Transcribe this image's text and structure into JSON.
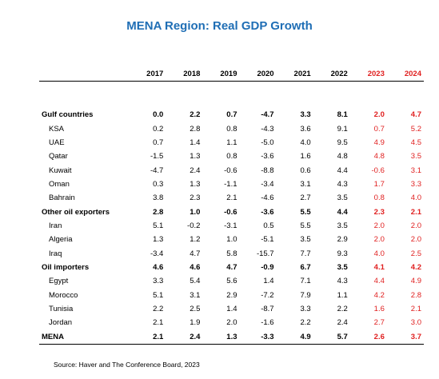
{
  "title": "MENA Region: Real GDP Growth",
  "source": "Source: Haver and The Conference Board, 2023",
  "colors": {
    "title": "#1f6eb5",
    "forecast": "#e02020",
    "text": "#000000"
  },
  "years": [
    "2017",
    "2018",
    "2019",
    "2020",
    "2021",
    "2022",
    "2023",
    "2024"
  ],
  "forecast_years": [
    "2023",
    "2024"
  ],
  "rows": [
    {
      "name": "Gulf countries",
      "type": "group",
      "values": [
        "0.0",
        "2.2",
        "0.7",
        "-4.7",
        "3.3",
        "8.1",
        "2.0",
        "4.7"
      ]
    },
    {
      "name": "KSA",
      "type": "sub",
      "values": [
        "0.2",
        "2.8",
        "0.8",
        "-4.3",
        "3.6",
        "9.1",
        "0.7",
        "5.2"
      ]
    },
    {
      "name": "UAE",
      "type": "sub",
      "values": [
        "0.7",
        "1.4",
        "1.1",
        "-5.0",
        "4.0",
        "9.5",
        "4.9",
        "4.5"
      ]
    },
    {
      "name": "Qatar",
      "type": "sub",
      "values": [
        "-1.5",
        "1.3",
        "0.8",
        "-3.6",
        "1.6",
        "4.8",
        "4.8",
        "3.5"
      ]
    },
    {
      "name": "Kuwait",
      "type": "sub",
      "values": [
        "-4.7",
        "2.4",
        "-0.6",
        "-8.8",
        "0.6",
        "4.4",
        "-0.6",
        "3.1"
      ]
    },
    {
      "name": "Oman",
      "type": "sub",
      "values": [
        "0.3",
        "1.3",
        "-1.1",
        "-3.4",
        "3.1",
        "4.3",
        "1.7",
        "3.3"
      ]
    },
    {
      "name": "Bahrain",
      "type": "sub",
      "values": [
        "3.8",
        "2.3",
        "2.1",
        "-4.6",
        "2.7",
        "3.5",
        "0.8",
        "4.0"
      ]
    },
    {
      "name": "Other oil exporters",
      "type": "group",
      "values": [
        "2.8",
        "1.0",
        "-0.6",
        "-3.6",
        "5.5",
        "4.4",
        "2.3",
        "2.1"
      ]
    },
    {
      "name": "Iran",
      "type": "sub",
      "values": [
        "5.1",
        "-0.2",
        "-3.1",
        "0.5",
        "5.5",
        "3.5",
        "2.0",
        "2.0"
      ]
    },
    {
      "name": "Algeria",
      "type": "sub",
      "values": [
        "1.3",
        "1.2",
        "1.0",
        "-5.1",
        "3.5",
        "2.9",
        "2.0",
        "2.0"
      ]
    },
    {
      "name": "Iraq",
      "type": "sub",
      "values": [
        "-3.4",
        "4.7",
        "5.8",
        "-15.7",
        "7.7",
        "9.3",
        "4.0",
        "2.5"
      ]
    },
    {
      "name": "Oil importers",
      "type": "group",
      "values": [
        "4.6",
        "4.6",
        "4.7",
        "-0.9",
        "6.7",
        "3.5",
        "4.1",
        "4.2"
      ]
    },
    {
      "name": "Egypt",
      "type": "sub",
      "values": [
        "3.3",
        "5.4",
        "5.6",
        "1.4",
        "7.1",
        "4.3",
        "4.4",
        "4.9"
      ]
    },
    {
      "name": "Morocco",
      "type": "sub",
      "values": [
        "5.1",
        "3.1",
        "2.9",
        "-7.2",
        "7.9",
        "1.1",
        "4.2",
        "2.8"
      ]
    },
    {
      "name": "Tunisia",
      "type": "sub",
      "values": [
        "2.2",
        "2.5",
        "1.4",
        "-8.7",
        "3.3",
        "2.2",
        "1.6",
        "2.1"
      ]
    },
    {
      "name": "Jordan",
      "type": "sub",
      "values": [
        "2.1",
        "1.9",
        "2.0",
        "-1.6",
        "2.2",
        "2.4",
        "2.7",
        "3.0"
      ]
    },
    {
      "name": "MENA",
      "type": "group",
      "values": [
        "2.1",
        "2.4",
        "1.3",
        "-3.3",
        "4.9",
        "5.7",
        "2.6",
        "3.7"
      ]
    }
  ]
}
